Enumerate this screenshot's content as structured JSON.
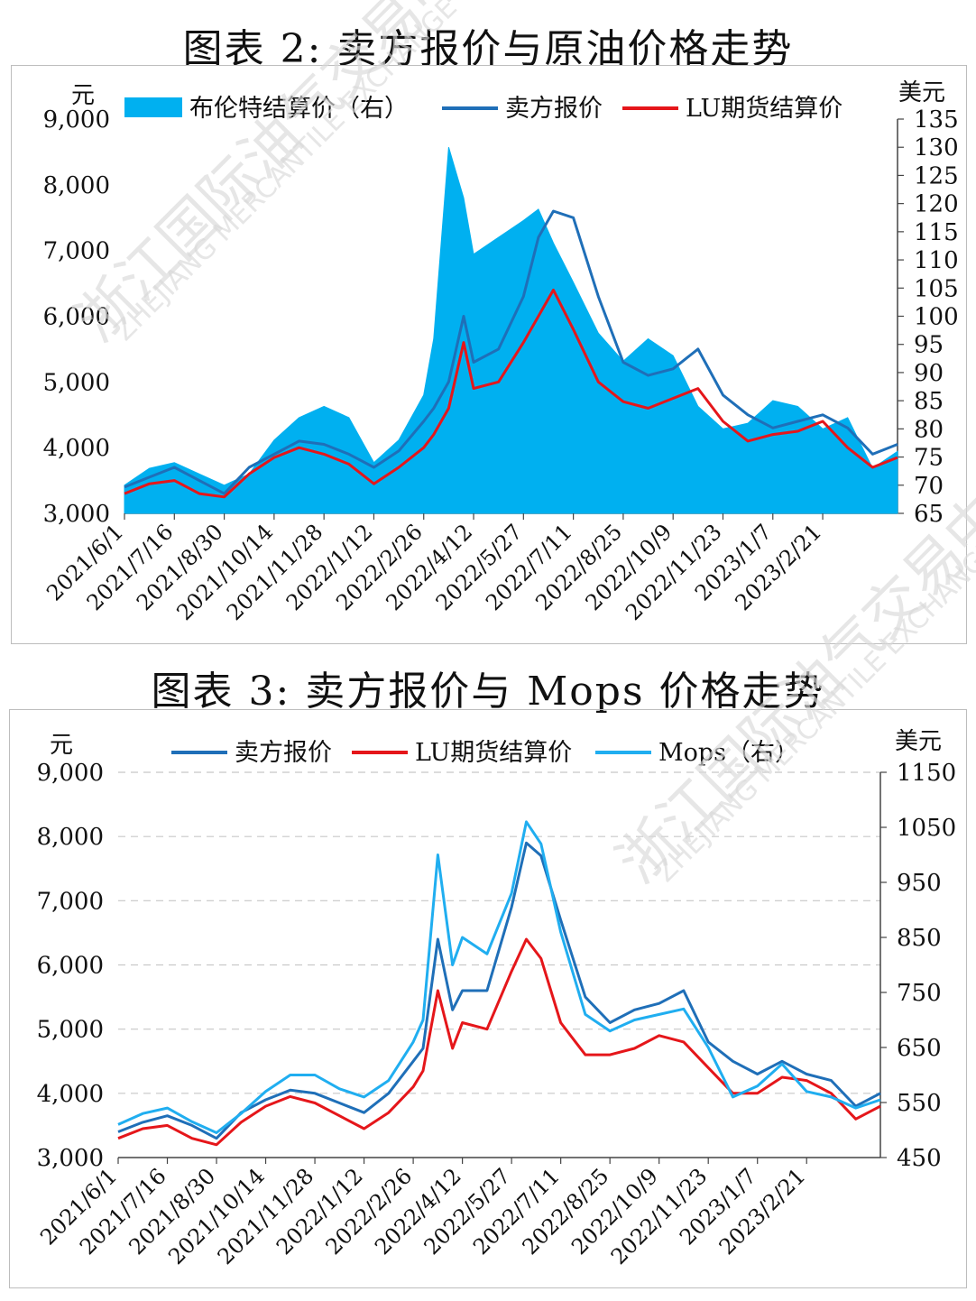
{
  "watermark": {
    "cn": "浙江国际油气交易中心",
    "en": "ZHEJIANG MERCANTILE EXCHANGE"
  },
  "charts": [
    {
      "title": "图表 2:  卖方报价与原油价格走势",
      "left_unit": "元",
      "right_unit": "美元",
      "legend": [
        "布伦特结算价（右）",
        "卖方报价",
        "LU期货结算价"
      ]
    },
    {
      "title": "图表 3:  卖方报价与 Mops 价格走势",
      "left_unit": "元",
      "right_unit": "美元",
      "legend": [
        "卖方报价",
        "LU期货结算价",
        "Mops（右）"
      ]
    }
  ],
  "chart_data": [
    {
      "type": "area",
      "title": "图表 2:  卖方报价与原油价格走势",
      "categories": [
        "2021/6/1",
        "2021/7/16",
        "2021/8/30",
        "2021/10/14",
        "2021/11/28",
        "2022/1/12",
        "2022/2/26",
        "2022/4/12",
        "2022/5/27",
        "2022/7/11",
        "2022/8/25",
        "2022/10/9",
        "2022/11/23",
        "2023/1/7",
        "2023/2/21"
      ],
      "ylim": [
        3000,
        9000
      ],
      "yticks": [
        "9,000",
        "8,000",
        "7,000",
        "6,000",
        "5,000",
        "4,000",
        "3,000"
      ],
      "y2lim": [
        65,
        135
      ],
      "y2ticks": [
        "135",
        "130",
        "125",
        "120",
        "115",
        "110",
        "105",
        "100",
        "95",
        "90",
        "85",
        "80",
        "75",
        "70",
        "65"
      ],
      "series": [
        {
          "name": "布伦特结算价（右）",
          "axis": "right",
          "color": "#00b0f0",
          "type": "area",
          "x": [
            0,
            0.5,
            1,
            1.5,
            2,
            2.5,
            3,
            3.5,
            4,
            4.5,
            5,
            5.5,
            6,
            6.2,
            6.5,
            6.8,
            7,
            7.5,
            8,
            8.3,
            8.6,
            9,
            9.5,
            10,
            10.5,
            11,
            11.5,
            12,
            12.5,
            13,
            13.5,
            14,
            14.5,
            15,
            15.5
          ],
          "values": [
            70,
            73,
            74,
            72,
            70,
            72,
            78,
            82,
            84,
            82,
            74,
            78,
            86,
            96,
            130,
            121,
            111,
            114,
            117,
            119,
            113,
            106,
            97,
            92,
            96,
            93,
            84,
            80,
            81,
            85,
            84,
            80,
            82,
            73,
            76
          ]
        },
        {
          "name": "卖方报价",
          "axis": "left",
          "color": "#1f6fb8",
          "type": "line",
          "x": [
            0,
            0.5,
            1,
            1.5,
            2,
            2.5,
            3,
            3.5,
            4,
            4.5,
            5,
            5.5,
            6,
            6.2,
            6.5,
            6.8,
            7,
            7.5,
            8,
            8.3,
            8.6,
            9,
            9.5,
            10,
            10.5,
            11,
            11.5,
            12,
            12.5,
            13,
            13.5,
            14,
            14.5,
            15,
            15.5
          ],
          "values": [
            3400,
            3550,
            3700,
            3500,
            3300,
            3700,
            3900,
            4100,
            4050,
            3900,
            3700,
            3950,
            4400,
            4600,
            5000,
            6000,
            5300,
            5500,
            6300,
            7200,
            7600,
            7500,
            6300,
            5300,
            5100,
            5200,
            5500,
            4800,
            4500,
            4300,
            4400,
            4500,
            4300,
            3900,
            4050
          ]
        },
        {
          "name": "LU期货结算价",
          "axis": "left",
          "color": "#e5161a",
          "type": "line",
          "x": [
            0,
            0.5,
            1,
            1.5,
            2,
            2.5,
            3,
            3.5,
            4,
            4.5,
            5,
            5.5,
            6,
            6.2,
            6.5,
            6.8,
            7,
            7.5,
            8,
            8.3,
            8.6,
            9,
            9.5,
            10,
            10.5,
            11,
            11.5,
            12,
            12.5,
            13,
            13.5,
            14,
            14.5,
            15,
            15.5
          ],
          "values": [
            3300,
            3450,
            3500,
            3300,
            3250,
            3600,
            3850,
            4000,
            3900,
            3750,
            3450,
            3700,
            4000,
            4200,
            4600,
            5600,
            4900,
            5000,
            5600,
            6000,
            6400,
            5800,
            5000,
            4700,
            4600,
            4750,
            4900,
            4400,
            4100,
            4200,
            4250,
            4400,
            4000,
            3700,
            3850
          ]
        }
      ]
    },
    {
      "type": "line",
      "title": "图表 3:  卖方报价与 Mops 价格走势",
      "categories": [
        "2021/6/1",
        "2021/7/16",
        "2021/8/30",
        "2021/10/14",
        "2021/11/28",
        "2022/1/12",
        "2022/2/26",
        "2022/4/12",
        "2022/5/27",
        "2022/7/11",
        "2022/8/25",
        "2022/10/9",
        "2022/11/23",
        "2023/1/7",
        "2023/2/21"
      ],
      "ylim": [
        3000,
        9000
      ],
      "yticks": [
        "9,000",
        "8,000",
        "7,000",
        "6,000",
        "5,000",
        "4,000",
        "3,000"
      ],
      "y2lim": [
        450,
        1150
      ],
      "y2ticks": [
        "1150",
        "1050",
        "950",
        "850",
        "750",
        "650",
        "550",
        "450"
      ],
      "series": [
        {
          "name": "卖方报价",
          "axis": "left",
          "color": "#1f6fb8",
          "x": [
            0,
            0.5,
            1,
            1.5,
            2,
            2.5,
            3,
            3.5,
            4,
            4.5,
            5,
            5.5,
            6,
            6.2,
            6.5,
            6.8,
            7,
            7.5,
            8,
            8.3,
            8.6,
            9,
            9.5,
            10,
            10.5,
            11,
            11.5,
            12,
            12.5,
            13,
            13.5,
            14,
            14.5,
            15,
            15.5
          ],
          "values": [
            3400,
            3550,
            3650,
            3500,
            3300,
            3700,
            3900,
            4050,
            4000,
            3850,
            3700,
            4000,
            4500,
            4700,
            6400,
            5300,
            5600,
            5600,
            6900,
            7900,
            7700,
            6700,
            5500,
            5100,
            5300,
            5400,
            5600,
            4800,
            4500,
            4300,
            4500,
            4300,
            4200,
            3800,
            4000
          ]
        },
        {
          "name": "LU期货结算价",
          "axis": "left",
          "color": "#e5161a",
          "x": [
            0,
            0.5,
            1,
            1.5,
            2,
            2.5,
            3,
            3.5,
            4,
            4.5,
            5,
            5.5,
            6,
            6.2,
            6.5,
            6.8,
            7,
            7.5,
            8,
            8.3,
            8.6,
            9,
            9.5,
            10,
            10.5,
            11,
            11.5,
            12,
            12.5,
            13,
            13.5,
            14,
            14.5,
            15,
            15.5
          ],
          "values": [
            3300,
            3450,
            3500,
            3300,
            3200,
            3550,
            3800,
            3950,
            3850,
            3650,
            3450,
            3700,
            4100,
            4350,
            5600,
            4700,
            5100,
            5000,
            5900,
            6400,
            6100,
            5100,
            4600,
            4600,
            4700,
            4900,
            4800,
            4400,
            4000,
            4000,
            4250,
            4200,
            4000,
            3600,
            3800
          ]
        },
        {
          "name": "Mops（右）",
          "axis": "right",
          "color": "#20aef0",
          "x": [
            0,
            0.5,
            1,
            1.5,
            2,
            2.5,
            3,
            3.5,
            4,
            4.5,
            5,
            5.5,
            6,
            6.2,
            6.5,
            6.8,
            7,
            7.5,
            8,
            8.3,
            8.6,
            9,
            9.5,
            10,
            10.5,
            11,
            11.5,
            12,
            12.5,
            13,
            13.5,
            14,
            14.5,
            15,
            15.5
          ],
          "values": [
            510,
            530,
            540,
            515,
            495,
            530,
            570,
            600,
            600,
            575,
            560,
            590,
            660,
            700,
            1000,
            800,
            850,
            820,
            930,
            1060,
            1020,
            860,
            710,
            680,
            700,
            710,
            720,
            650,
            560,
            580,
            620,
            570,
            560,
            540,
            555
          ]
        }
      ]
    }
  ]
}
